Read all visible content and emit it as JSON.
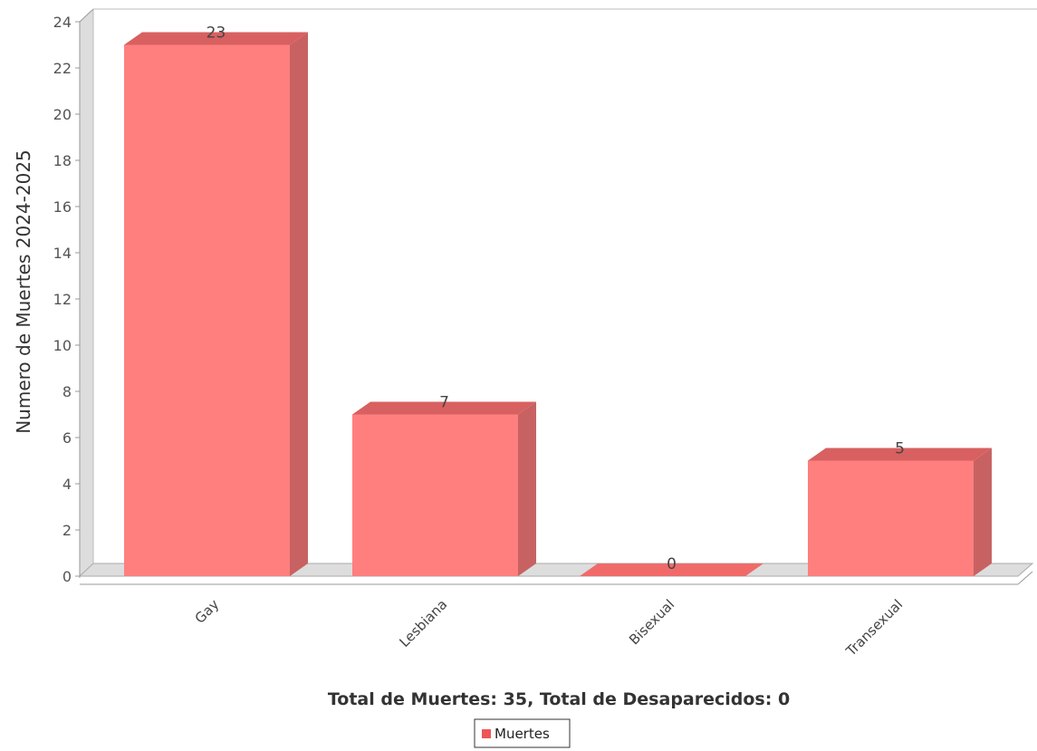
{
  "chart_data": {
    "type": "bar",
    "categories": [
      "Gay",
      "Lesbiana",
      "Bisexual",
      "Transexual"
    ],
    "series": [
      {
        "name": "Muertes",
        "values": [
          23,
          7,
          0,
          5
        ]
      }
    ],
    "data_labels": [
      "23",
      "7",
      "0",
      "5"
    ],
    "ylabel": "Numero de Muertes 2024-2025",
    "xlabel": "Total de Muertes: 35, Total de Desaparecidos: 0",
    "ylim": [
      0,
      24
    ],
    "yticks": [
      "0",
      "2",
      "4",
      "6",
      "8",
      "10",
      "12",
      "14",
      "16",
      "18",
      "20",
      "22",
      "24"
    ],
    "grid": false,
    "legend": {
      "placement": "bottom-center",
      "entries": [
        "Muertes"
      ]
    },
    "style": "3d",
    "colors": {
      "bar_front": "#ff7f7f",
      "bar_top": "#d86060",
      "bar_side": "#c86262",
      "wall": "#dddddd",
      "axis": "#999999"
    }
  }
}
